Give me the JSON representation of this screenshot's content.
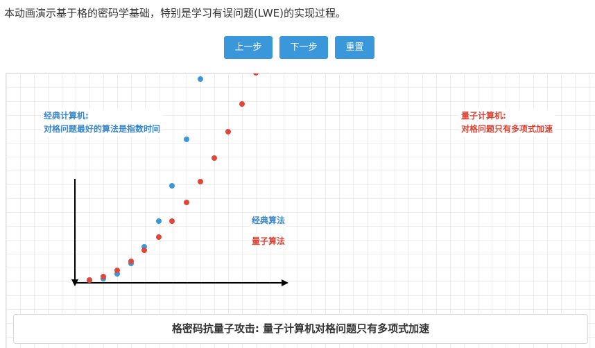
{
  "intro_text": "本动画演示基于格的密码学基础，特别是学习有误问题(LWE)的实现过程。",
  "controls": {
    "prev_label": "上一步",
    "next_label": "下一步",
    "reset_label": "重置"
  },
  "notes": {
    "classical_title": "经典计算机:",
    "classical_text": "对格问题最好的算法是指数时间",
    "quantum_title": "量子计算机:",
    "quantum_text": "对格问题只有多项式加速"
  },
  "legend": {
    "classical": "经典算法",
    "quantum": "量子算法"
  },
  "caption": "格密码抗量子攻击: 量子计算机对格问题只有多项式加速",
  "colors": {
    "accent_button": "#3a97da",
    "classical": "#3a97da",
    "quantum": "#e0473a",
    "axis": "#000000"
  }
}
